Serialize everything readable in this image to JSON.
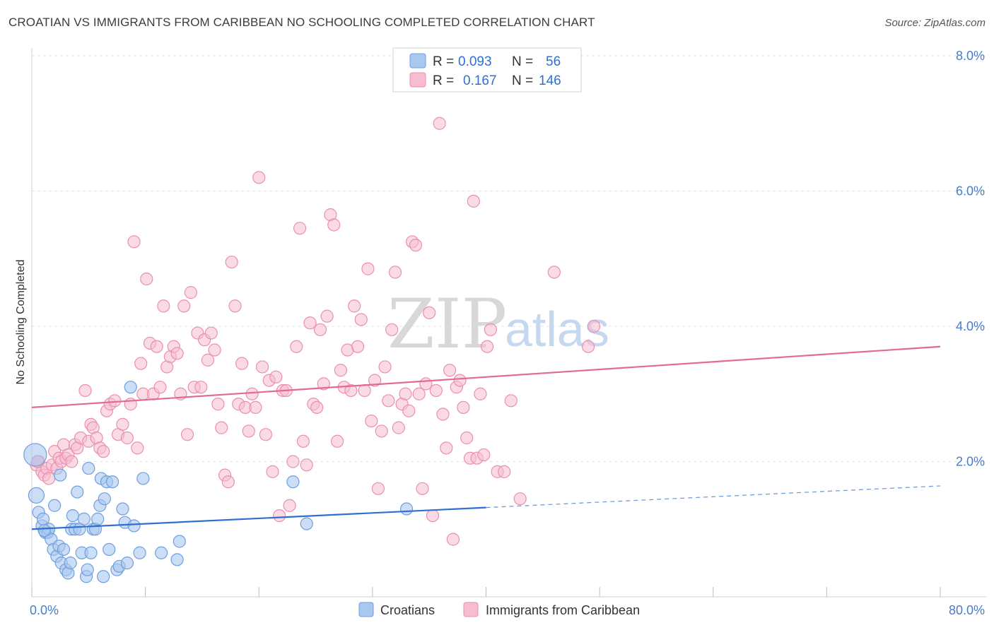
{
  "title": "CROATIAN VS IMMIGRANTS FROM CARIBBEAN NO SCHOOLING COMPLETED CORRELATION CHART",
  "source": "Source: ZipAtlas.com",
  "colors": {
    "blue_fill": "#a9c8ef",
    "blue_stroke": "#6f9ee0",
    "blue_line": "#2f6fd1",
    "pink_fill": "#f6bdd0",
    "pink_stroke": "#eb8fae",
    "pink_line": "#e36a93",
    "axis_text": "#4a7cc9",
    "grid": "#e3e3e3"
  },
  "legend": {
    "r_label": "R =",
    "n_label": "N =",
    "blue_r": "0.093",
    "blue_n": "56",
    "pink_r": "0.167",
    "pink_n": "146"
  },
  "watermark": {
    "zip": "ZIP",
    "atlas": "atlas"
  },
  "chart_data": {
    "type": "scatter",
    "title": "CROATIAN VS IMMIGRANTS FROM CARIBBEAN NO SCHOOLING COMPLETED CORRELATION CHART",
    "xlabel": "",
    "ylabel": "No Schooling Completed",
    "xlim": [
      0,
      80
    ],
    "ylim": [
      0,
      8.0
    ],
    "x_tick_labels": [
      "0.0%",
      "80.0%"
    ],
    "y_ticks": [
      2.0,
      4.0,
      6.0,
      8.0
    ],
    "y_tick_labels": [
      "2.0%",
      "4.0%",
      "6.0%",
      "8.0%"
    ],
    "grid": true,
    "legend_position": "top-center",
    "series": [
      {
        "name": "Croatians",
        "r": 0.093,
        "n": 56,
        "trend": {
          "x": [
            0,
            40,
            80
          ],
          "y": [
            1.0,
            1.32,
            1.64
          ],
          "solid_until": 40
        },
        "points": [
          [
            0.3,
            2.1
          ],
          [
            0.4,
            1.5
          ],
          [
            0.6,
            1.25
          ],
          [
            0.9,
            1.05
          ],
          [
            1.0,
            1.15
          ],
          [
            1.2,
            0.95
          ],
          [
            1.4,
            0.95
          ],
          [
            1.5,
            1.0
          ],
          [
            1.7,
            0.85
          ],
          [
            1.9,
            0.7
          ],
          [
            2.0,
            1.35
          ],
          [
            2.2,
            0.6
          ],
          [
            2.4,
            0.75
          ],
          [
            2.5,
            1.8
          ],
          [
            2.6,
            0.5
          ],
          [
            2.8,
            0.7
          ],
          [
            3.0,
            0.4
          ],
          [
            3.2,
            0.35
          ],
          [
            3.4,
            0.5
          ],
          [
            3.5,
            1.0
          ],
          [
            3.6,
            1.2
          ],
          [
            3.8,
            1.0
          ],
          [
            4.0,
            1.55
          ],
          [
            4.2,
            1.0
          ],
          [
            4.4,
            0.65
          ],
          [
            4.6,
            1.15
          ],
          [
            4.8,
            0.3
          ],
          [
            4.9,
            0.4
          ],
          [
            5.0,
            1.9
          ],
          [
            5.2,
            0.65
          ],
          [
            5.4,
            1.0
          ],
          [
            5.6,
            1.0
          ],
          [
            5.8,
            1.15
          ],
          [
            6.0,
            1.35
          ],
          [
            6.1,
            1.75
          ],
          [
            6.3,
            0.3
          ],
          [
            6.4,
            1.45
          ],
          [
            6.6,
            1.7
          ],
          [
            6.8,
            0.7
          ],
          [
            7.1,
            1.7
          ],
          [
            7.5,
            0.4
          ],
          [
            7.7,
            0.45
          ],
          [
            8.0,
            1.3
          ],
          [
            8.2,
            1.1
          ],
          [
            8.4,
            0.5
          ],
          [
            8.7,
            3.1
          ],
          [
            9.0,
            1.05
          ],
          [
            9.5,
            0.65
          ],
          [
            9.8,
            1.75
          ],
          [
            11.4,
            0.65
          ],
          [
            12.8,
            0.55
          ],
          [
            13.0,
            0.82
          ],
          [
            23.0,
            1.7
          ],
          [
            24.2,
            1.08
          ],
          [
            33.0,
            1.3
          ],
          [
            1.1,
            0.98
          ]
        ]
      },
      {
        "name": "Immigrants from Caribbean",
        "r": 0.167,
        "n": 146,
        "trend": {
          "x": [
            0,
            80
          ],
          "y": [
            2.8,
            3.7
          ]
        },
        "points": [
          [
            0.4,
            1.95
          ],
          [
            0.6,
            2.0
          ],
          [
            0.9,
            1.85
          ],
          [
            1.1,
            1.8
          ],
          [
            1.3,
            1.9
          ],
          [
            1.5,
            1.75
          ],
          [
            1.8,
            1.95
          ],
          [
            2.0,
            2.15
          ],
          [
            2.2,
            1.9
          ],
          [
            2.4,
            2.05
          ],
          [
            2.6,
            2.0
          ],
          [
            2.8,
            2.25
          ],
          [
            3.0,
            2.05
          ],
          [
            3.2,
            2.1
          ],
          [
            3.5,
            2.0
          ],
          [
            3.8,
            2.25
          ],
          [
            4.0,
            2.2
          ],
          [
            4.3,
            2.35
          ],
          [
            4.7,
            3.05
          ],
          [
            5.0,
            2.3
          ],
          [
            5.2,
            2.55
          ],
          [
            5.4,
            2.5
          ],
          [
            5.7,
            2.35
          ],
          [
            6.0,
            2.2
          ],
          [
            6.3,
            2.15
          ],
          [
            6.6,
            2.75
          ],
          [
            6.9,
            2.85
          ],
          [
            7.3,
            2.9
          ],
          [
            7.6,
            2.4
          ],
          [
            8.0,
            2.55
          ],
          [
            8.4,
            2.35
          ],
          [
            8.7,
            2.85
          ],
          [
            9.0,
            5.25
          ],
          [
            9.3,
            2.2
          ],
          [
            9.6,
            3.45
          ],
          [
            9.8,
            3.0
          ],
          [
            10.1,
            4.7
          ],
          [
            10.4,
            3.75
          ],
          [
            10.7,
            3.0
          ],
          [
            11.0,
            3.7
          ],
          [
            11.3,
            3.1
          ],
          [
            11.6,
            4.3
          ],
          [
            11.9,
            3.4
          ],
          [
            12.2,
            3.55
          ],
          [
            12.5,
            3.7
          ],
          [
            12.8,
            3.6
          ],
          [
            13.1,
            3.0
          ],
          [
            13.4,
            4.3
          ],
          [
            13.7,
            2.4
          ],
          [
            14.0,
            4.5
          ],
          [
            14.3,
            3.1
          ],
          [
            14.6,
            3.9
          ],
          [
            14.9,
            3.1
          ],
          [
            15.2,
            3.8
          ],
          [
            15.5,
            3.5
          ],
          [
            15.8,
            3.9
          ],
          [
            16.1,
            3.65
          ],
          [
            16.4,
            2.85
          ],
          [
            16.7,
            2.5
          ],
          [
            17.0,
            1.8
          ],
          [
            17.3,
            1.7
          ],
          [
            17.6,
            4.95
          ],
          [
            17.9,
            4.3
          ],
          [
            18.2,
            2.85
          ],
          [
            18.5,
            3.45
          ],
          [
            18.8,
            2.8
          ],
          [
            19.1,
            2.45
          ],
          [
            19.4,
            3.0
          ],
          [
            19.7,
            2.8
          ],
          [
            20.0,
            6.2
          ],
          [
            20.3,
            3.4
          ],
          [
            20.6,
            2.4
          ],
          [
            20.9,
            3.2
          ],
          [
            21.2,
            1.85
          ],
          [
            21.5,
            3.25
          ],
          [
            21.8,
            1.2
          ],
          [
            22.1,
            3.05
          ],
          [
            22.4,
            3.05
          ],
          [
            22.7,
            1.35
          ],
          [
            23.0,
            2.0
          ],
          [
            23.3,
            3.7
          ],
          [
            23.6,
            5.45
          ],
          [
            23.9,
            2.3
          ],
          [
            24.2,
            1.95
          ],
          [
            24.5,
            4.05
          ],
          [
            24.8,
            2.85
          ],
          [
            25.1,
            2.8
          ],
          [
            25.4,
            3.95
          ],
          [
            25.7,
            3.15
          ],
          [
            26.0,
            4.15
          ],
          [
            26.3,
            5.65
          ],
          [
            26.6,
            5.5
          ],
          [
            26.9,
            2.3
          ],
          [
            27.2,
            3.35
          ],
          [
            27.5,
            3.1
          ],
          [
            27.8,
            3.65
          ],
          [
            28.1,
            3.05
          ],
          [
            28.4,
            4.3
          ],
          [
            28.7,
            3.7
          ],
          [
            29.0,
            4.1
          ],
          [
            29.3,
            3.05
          ],
          [
            29.6,
            4.85
          ],
          [
            29.9,
            2.6
          ],
          [
            30.2,
            3.2
          ],
          [
            30.5,
            1.6
          ],
          [
            30.8,
            2.45
          ],
          [
            31.1,
            3.4
          ],
          [
            31.4,
            2.9
          ],
          [
            31.7,
            3.95
          ],
          [
            32.0,
            4.8
          ],
          [
            32.3,
            2.5
          ],
          [
            32.6,
            2.85
          ],
          [
            32.9,
            3.0
          ],
          [
            33.2,
            2.75
          ],
          [
            33.5,
            5.25
          ],
          [
            33.8,
            5.2
          ],
          [
            34.1,
            3.0
          ],
          [
            34.4,
            1.6
          ],
          [
            34.7,
            3.15
          ],
          [
            35.0,
            4.2
          ],
          [
            35.3,
            1.2
          ],
          [
            35.6,
            3.05
          ],
          [
            35.9,
            7.0
          ],
          [
            36.2,
            2.7
          ],
          [
            36.5,
            2.2
          ],
          [
            36.8,
            3.35
          ],
          [
            37.1,
            0.85
          ],
          [
            37.4,
            3.1
          ],
          [
            37.7,
            3.2
          ],
          [
            38.0,
            2.8
          ],
          [
            38.3,
            2.35
          ],
          [
            38.6,
            2.05
          ],
          [
            38.9,
            5.85
          ],
          [
            39.2,
            2.05
          ],
          [
            39.5,
            3.0
          ],
          [
            39.8,
            2.1
          ],
          [
            40.1,
            3.7
          ],
          [
            40.4,
            3.95
          ],
          [
            41.0,
            1.85
          ],
          [
            41.6,
            1.85
          ],
          [
            42.2,
            2.9
          ],
          [
            43.0,
            1.45
          ],
          [
            46.0,
            4.8
          ],
          [
            49.0,
            3.7
          ],
          [
            49.5,
            4.0
          ],
          [
            0.5,
            2.0
          ]
        ]
      }
    ]
  },
  "bottom_legend": {
    "series1": "Croatians",
    "series2": "Immigrants from Caribbean"
  }
}
